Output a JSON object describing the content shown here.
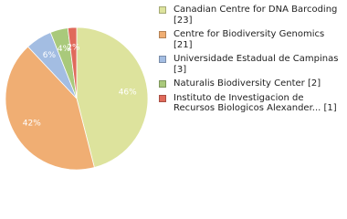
{
  "chart_data": {
    "type": "pie",
    "series": [
      {
        "name": "Canadian Centre for DNA Barcoding [23]",
        "color": "#dde39d",
        "values": [
          46
        ],
        "value_labels": [
          "46%"
        ]
      },
      {
        "name": "Centre for Biodiversity Genomics [21]",
        "color": "#f0ae73",
        "values": [
          42
        ],
        "value_labels": [
          "42%"
        ]
      },
      {
        "name": "Universidade Estadual de Campinas [3]",
        "color": "#a3bde2",
        "values": [
          6
        ],
        "value_labels": [
          "6%"
        ]
      },
      {
        "name": "Naturalis Biodiversity Center [2]",
        "color": "#a9c97b",
        "values": [
          4
        ],
        "value_labels": [
          "4%"
        ]
      },
      {
        "name": "Instituto de Investigacion de Recursos Biologicos Alexander... [1]",
        "color": "#e06a5b",
        "values": [
          2
        ],
        "value_labels": [
          "2%"
        ]
      }
    ]
  }
}
